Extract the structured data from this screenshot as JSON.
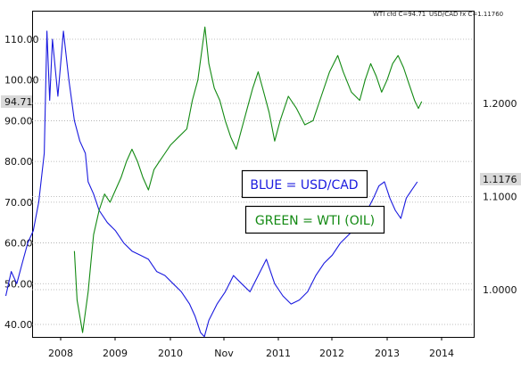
{
  "header": {
    "wti_label": "WTI cfd C=94.71",
    "usdcad_label": "USD/CAD fx C=1.11760"
  },
  "badges": {
    "left_value": "94.71",
    "right_value": "1.1176"
  },
  "legend": {
    "blue_text": "BLUE = USD/CAD",
    "green_text": "GREEN = WTI (OIL)"
  },
  "colors": {
    "usdcad": "#1a1adf",
    "wti": "#138a13",
    "grid": "#aaaaaa",
    "axis": "#000000",
    "badge_bg": "#d9d9d9"
  },
  "chart_data": {
    "type": "line",
    "title": "",
    "x_tick_labels": [
      "2008",
      "2009",
      "2010",
      "Nov",
      "2011",
      "2012",
      "2013",
      "2014"
    ],
    "y_left": {
      "ticks": [
        "110.00",
        "100.00",
        "90.00",
        "80.00",
        "70.00",
        "60.00",
        "50.00",
        "40.00"
      ],
      "range": [
        34,
        118
      ]
    },
    "y_right": {
      "ticks": [
        "1.2000",
        "1.1000",
        "1.0000"
      ],
      "range": [
        0.933,
        1.241
      ]
    },
    "grid": "horizontal dotted",
    "series": [
      {
        "name": "USD/CAD",
        "axis": "left",
        "values": [
          [
            2007.0,
            47
          ],
          [
            2007.1,
            53
          ],
          [
            2007.2,
            50
          ],
          [
            2007.3,
            55
          ],
          [
            2007.4,
            60
          ],
          [
            2007.5,
            63
          ],
          [
            2007.6,
            70
          ],
          [
            2007.7,
            82
          ],
          [
            2007.75,
            112
          ],
          [
            2007.8,
            95
          ],
          [
            2007.85,
            110
          ],
          [
            2007.95,
            96
          ],
          [
            2008.05,
            112
          ],
          [
            2008.15,
            100
          ],
          [
            2008.25,
            90
          ],
          [
            2008.35,
            85
          ],
          [
            2008.45,
            82
          ],
          [
            2008.5,
            75
          ],
          [
            2008.6,
            72
          ],
          [
            2008.7,
            68
          ],
          [
            2008.85,
            65
          ],
          [
            2009.0,
            63
          ],
          [
            2009.15,
            60
          ],
          [
            2009.3,
            58
          ],
          [
            2009.45,
            57
          ],
          [
            2009.6,
            56
          ],
          [
            2009.75,
            53
          ],
          [
            2009.9,
            52
          ],
          [
            2010.05,
            50
          ],
          [
            2010.2,
            48
          ],
          [
            2010.35,
            45
          ],
          [
            2010.45,
            42
          ],
          [
            2010.55,
            38
          ],
          [
            2010.62,
            37
          ],
          [
            2010.7,
            41
          ],
          [
            2010.85,
            45
          ],
          [
            2011.0,
            48
          ],
          [
            2011.15,
            52
          ],
          [
            2011.3,
            50
          ],
          [
            2011.45,
            48
          ],
          [
            2011.6,
            52
          ],
          [
            2011.75,
            56
          ],
          [
            2011.9,
            50
          ],
          [
            2012.05,
            47
          ],
          [
            2012.2,
            45
          ],
          [
            2012.35,
            46
          ],
          [
            2012.5,
            48
          ],
          [
            2012.65,
            52
          ],
          [
            2012.8,
            55
          ],
          [
            2012.95,
            57
          ],
          [
            2013.1,
            60
          ],
          [
            2013.25,
            62
          ],
          [
            2013.4,
            64
          ],
          [
            2013.55,
            67
          ],
          [
            2013.7,
            71
          ],
          [
            2013.8,
            74
          ],
          [
            2013.9,
            75
          ],
          [
            2014.0,
            71
          ],
          [
            2014.1,
            68
          ],
          [
            2014.2,
            66
          ],
          [
            2014.3,
            71
          ],
          [
            2014.4,
            73
          ],
          [
            2014.5,
            75
          ]
        ]
      },
      {
        "name": "WTI (OIL)",
        "axis": "left",
        "values": [
          [
            2008.25,
            58
          ],
          [
            2008.3,
            46
          ],
          [
            2008.35,
            42
          ],
          [
            2008.4,
            38
          ],
          [
            2008.45,
            43
          ],
          [
            2008.5,
            48
          ],
          [
            2008.55,
            55
          ],
          [
            2008.6,
            62
          ],
          [
            2008.7,
            68
          ],
          [
            2008.8,
            72
          ],
          [
            2008.9,
            70
          ],
          [
            2009.0,
            73
          ],
          [
            2009.1,
            76
          ],
          [
            2009.2,
            80
          ],
          [
            2009.3,
            83
          ],
          [
            2009.4,
            80
          ],
          [
            2009.5,
            76
          ],
          [
            2009.6,
            73
          ],
          [
            2009.7,
            78
          ],
          [
            2009.8,
            80
          ],
          [
            2009.9,
            82
          ],
          [
            2010.0,
            84
          ],
          [
            2010.15,
            86
          ],
          [
            2010.3,
            88
          ],
          [
            2010.4,
            95
          ],
          [
            2010.5,
            100
          ],
          [
            2010.58,
            108
          ],
          [
            2010.63,
            113
          ],
          [
            2010.7,
            104
          ],
          [
            2010.8,
            98
          ],
          [
            2010.9,
            95
          ],
          [
            2011.0,
            90
          ],
          [
            2011.1,
            86
          ],
          [
            2011.2,
            83
          ],
          [
            2011.3,
            88
          ],
          [
            2011.4,
            93
          ],
          [
            2011.5,
            98
          ],
          [
            2011.6,
            102
          ],
          [
            2011.7,
            97
          ],
          [
            2011.8,
            92
          ],
          [
            2011.9,
            85
          ],
          [
            2012.0,
            90
          ],
          [
            2012.15,
            96
          ],
          [
            2012.3,
            93
          ],
          [
            2012.45,
            89
          ],
          [
            2012.6,
            90
          ],
          [
            2012.75,
            96
          ],
          [
            2012.9,
            102
          ],
          [
            2013.05,
            106
          ],
          [
            2013.15,
            102
          ],
          [
            2013.3,
            97
          ],
          [
            2013.45,
            95
          ],
          [
            2013.55,
            100
          ],
          [
            2013.65,
            104
          ],
          [
            2013.75,
            101
          ],
          [
            2013.85,
            97
          ],
          [
            2013.95,
            100
          ],
          [
            2014.05,
            104
          ],
          [
            2014.15,
            106
          ],
          [
            2014.25,
            103
          ],
          [
            2014.35,
            99
          ],
          [
            2014.45,
            95
          ],
          [
            2014.52,
            93
          ],
          [
            2014.58,
            94.71
          ]
        ]
      }
    ]
  }
}
